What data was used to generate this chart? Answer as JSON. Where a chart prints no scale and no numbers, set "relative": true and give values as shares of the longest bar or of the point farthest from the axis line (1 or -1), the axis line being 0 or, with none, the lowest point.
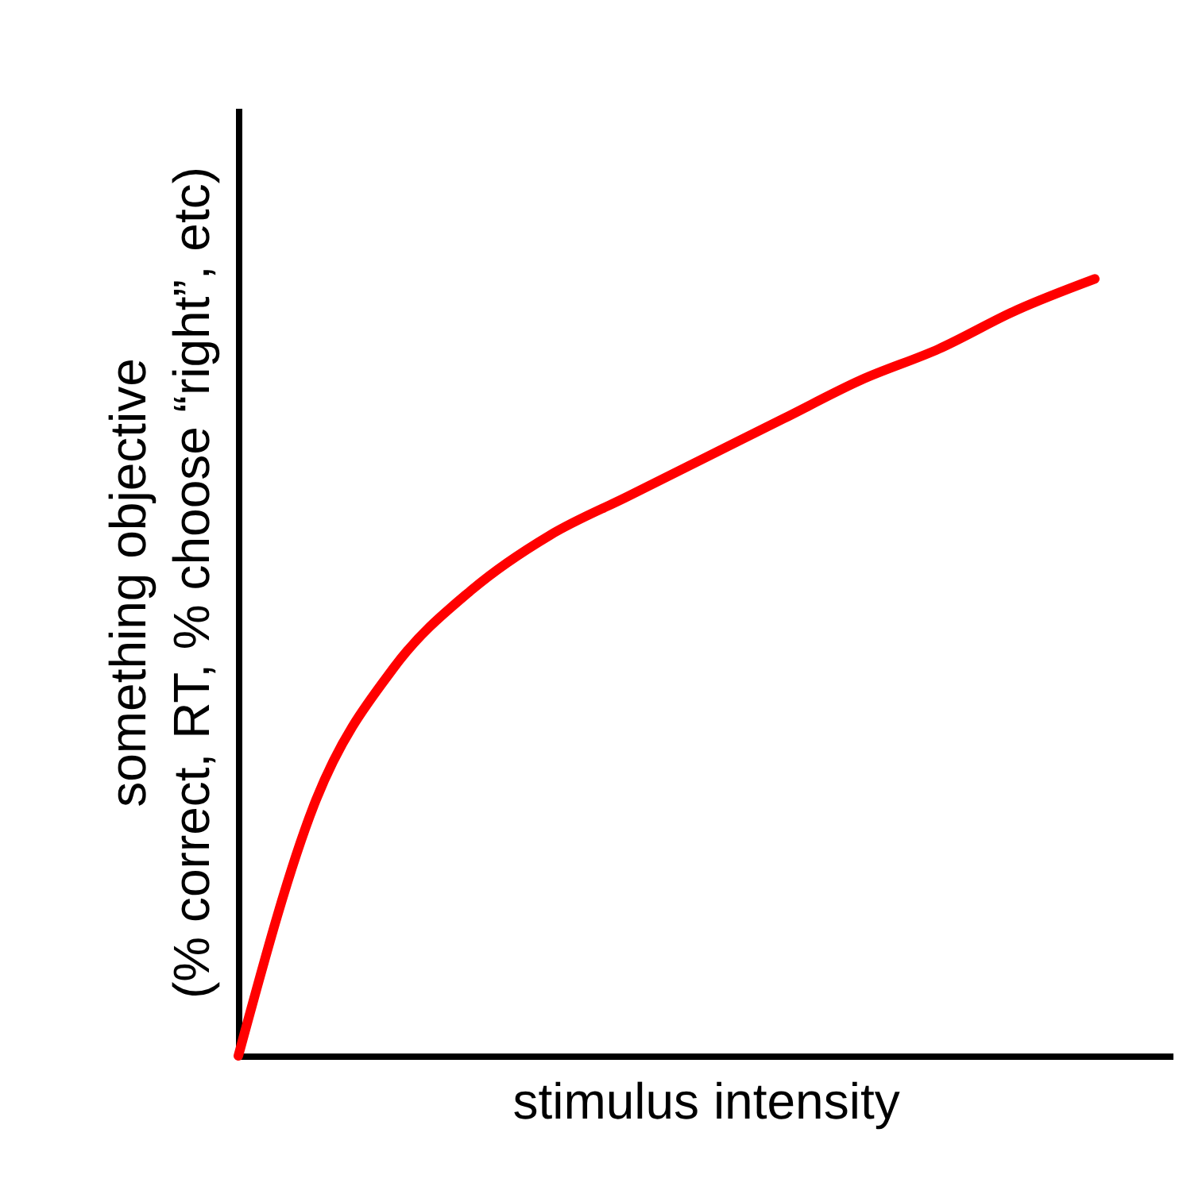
{
  "chart_data": {
    "type": "line",
    "relative": true,
    "xlabel": "stimulus intensity",
    "ylabel": "something objective\n(% correct, RT, % choose “right”, etc)",
    "categories": [
      null,
      null,
      null,
      null,
      null,
      null,
      null,
      null,
      null,
      null,
      null,
      null,
      null
    ],
    "series": [
      {
        "color": "#ff0000",
        "values": [
          0,
          0.33,
          0.5,
          0.6,
          0.67,
          0.72,
          0.77,
          0.82,
          0.87,
          0.91,
          0.96,
          1,
          null
        ]
      }
    ],
    "grid": false,
    "marker": "none",
    "line_style": "solid"
  }
}
